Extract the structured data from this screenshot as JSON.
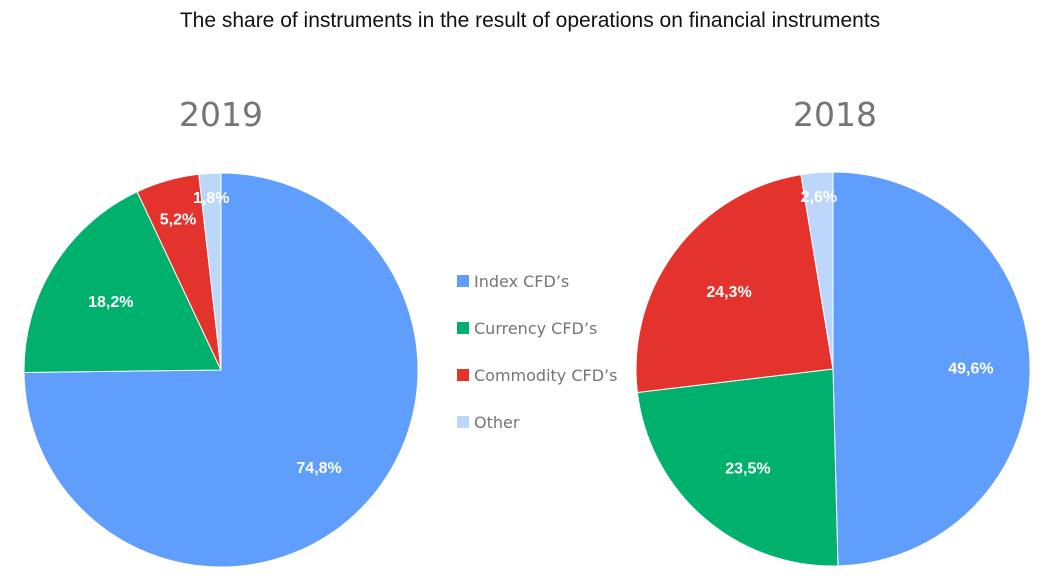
{
  "title": "The share of instruments in the result of operations on financial instruments",
  "legend": [
    {
      "label": "Index CFD’s",
      "color": "#5f9efc"
    },
    {
      "label": "Currency CFD’s",
      "color": "#00b06d"
    },
    {
      "label": "Commodity CFD’s",
      "color": "#e4332c"
    },
    {
      "label": "Other",
      "color": "#bdd7fb"
    }
  ],
  "chart_data": [
    {
      "type": "pie",
      "title": "2019",
      "categories": [
        "Index CFD’s",
        "Currency CFD’s",
        "Commodity CFD’s",
        "Other"
      ],
      "values": [
        74.8,
        18.2,
        5.2,
        1.8
      ],
      "labels": [
        "74,8%",
        "18,2%",
        "5,2%",
        "1,8%"
      ],
      "colors": [
        "#5f9efc",
        "#00b06d",
        "#e4332c",
        "#bdd7fb"
      ],
      "legend_position": "center"
    },
    {
      "type": "pie",
      "title": "2018",
      "categories": [
        "Index CFD’s",
        "Currency CFD’s",
        "Commodity CFD’s",
        "Other"
      ],
      "values": [
        49.6,
        23.5,
        24.3,
        2.6
      ],
      "labels": [
        "49,6%",
        "23,5%",
        "24,3%",
        "2,6%"
      ],
      "colors": [
        "#5f9efc",
        "#00b06d",
        "#e4332c",
        "#bdd7fb"
      ],
      "legend_position": "center"
    }
  ]
}
